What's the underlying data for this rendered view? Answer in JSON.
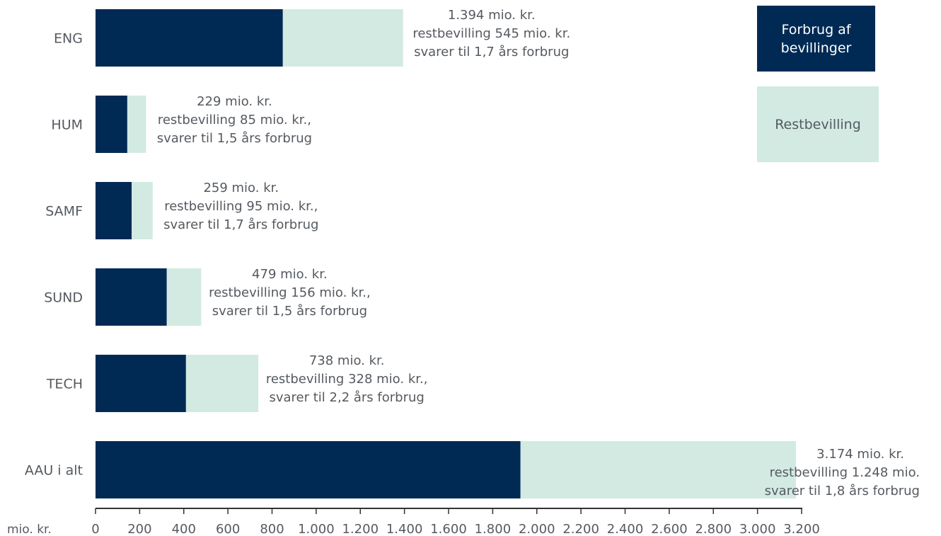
{
  "chart_data": {
    "type": "bar",
    "orientation": "horizontal",
    "stacked": true,
    "categories": [
      "ENG",
      "HUM",
      "SAMF",
      "SUND",
      "TECH",
      "AAU i alt"
    ],
    "series": [
      {
        "name": "Forbrug af bevillinger",
        "color": "#002A54",
        "values": [
          849,
          144,
          164,
          323,
          410,
          1926
        ]
      },
      {
        "name": "Restbevilling",
        "color": "#D2EAE2",
        "values": [
          545,
          85,
          95,
          156,
          328,
          1248
        ]
      }
    ],
    "totals": [
      1394,
      229,
      259,
      479,
      738,
      3174
    ],
    "annotations": [
      [
        "1.394 mio. kr.",
        "restbevilling 545 mio. kr.",
        "svarer til 1,7 års forbrug"
      ],
      [
        "229 mio. kr.",
        "restbevilling 85 mio. kr.,",
        "svarer til 1,5 års forbrug"
      ],
      [
        "259 mio. kr.",
        "restbevilling 95 mio. kr.,",
        "svarer til 1,7 års forbrug"
      ],
      [
        "479 mio. kr.",
        "restbevilling 156 mio. kr.,",
        "svarer til 1,5 års forbrug"
      ],
      [
        "738 mio. kr.",
        "restbevilling 328 mio. kr.,",
        "svarer til 2,2 års forbrug"
      ],
      [
        "3.174 mio. kr.",
        "restbevilling 1.248 mio.",
        "svarer til 1,8 års forbrug"
      ]
    ],
    "xlabel": "mio. kr.",
    "xlim": [
      0,
      3200
    ],
    "xticks": [
      0,
      200,
      400,
      600,
      800,
      1000,
      1200,
      1400,
      1600,
      1800,
      2000,
      2200,
      2400,
      2600,
      2800,
      3000,
      3200
    ],
    "xtick_labels": [
      "0",
      "200",
      "400",
      "600",
      "800",
      "1.000",
      "1.200",
      "1.400",
      "1.600",
      "1.800",
      "2.000",
      "2.200",
      "2.400",
      "2.600",
      "2.800",
      "3.000",
      "3.200"
    ],
    "grid": false,
    "legend_position": "top-right"
  },
  "legend": {
    "consumption_label": "Forbrug af\nbevillinger",
    "remaining_label": "Restbevilling"
  }
}
